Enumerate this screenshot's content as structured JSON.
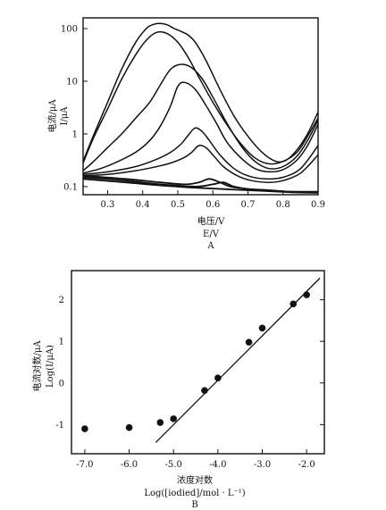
{
  "chart_data": [
    {
      "id": "A",
      "panel_label": "A",
      "type": "line",
      "y_scale": "log",
      "xlim": [
        0.23,
        0.9
      ],
      "ylim": [
        0.07,
        160
      ],
      "xticks": [
        "0.3",
        "0.4",
        "0.5",
        "0.6",
        "0.7",
        "0.8",
        "0.9"
      ],
      "yticks": [
        "0.1",
        "1",
        "10",
        "100"
      ],
      "xlabel_lines": [
        "电压/V",
        "E/V"
      ],
      "ylabel_lines": [
        "电流/μA",
        "I/μA"
      ],
      "series": [
        {
          "x": [
            0.23,
            0.26,
            0.3,
            0.34,
            0.38,
            0.41,
            0.43,
            0.45,
            0.47,
            0.49,
            0.51,
            0.53,
            0.55,
            0.58,
            0.62,
            0.66,
            0.7,
            0.74,
            0.78,
            0.81,
            0.84,
            0.87,
            0.9
          ],
          "y": [
            0.3,
            0.95,
            4.0,
            17,
            55,
            100,
            120,
            125,
            118,
            100,
            88,
            75,
            55,
            25,
            7,
            2.2,
            0.9,
            0.45,
            0.3,
            0.32,
            0.5,
            1.0,
            2.6
          ]
        },
        {
          "x": [
            0.23,
            0.26,
            0.3,
            0.34,
            0.38,
            0.41,
            0.44,
            0.47,
            0.5,
            0.53,
            0.56,
            0.6,
            0.64,
            0.68,
            0.72,
            0.76,
            0.8,
            0.84,
            0.87,
            0.9
          ],
          "y": [
            0.28,
            0.85,
            3.0,
            11,
            32,
            60,
            85,
            80,
            55,
            28,
            12,
            4.0,
            1.5,
            0.65,
            0.35,
            0.27,
            0.3,
            0.45,
            0.9,
            2.0
          ]
        },
        {
          "x": [
            0.23,
            0.26,
            0.3,
            0.34,
            0.38,
            0.42,
            0.45,
            0.48,
            0.51,
            0.54,
            0.57,
            0.6,
            0.64,
            0.68,
            0.72,
            0.76,
            0.8,
            0.84,
            0.87,
            0.9
          ],
          "y": [
            0.2,
            0.3,
            0.55,
            1.0,
            2.0,
            4.0,
            8.5,
            17,
            21,
            18,
            11,
            5.0,
            1.6,
            0.6,
            0.3,
            0.22,
            0.24,
            0.38,
            0.75,
            1.8
          ]
        },
        {
          "x": [
            0.23,
            0.28,
            0.33,
            0.38,
            0.42,
            0.45,
            0.48,
            0.5,
            0.52,
            0.55,
            0.58,
            0.61,
            0.64,
            0.68,
            0.72,
            0.76,
            0.8,
            0.84,
            0.87,
            0.9
          ],
          "y": [
            0.18,
            0.22,
            0.3,
            0.45,
            0.75,
            1.4,
            3.5,
            8.0,
            9.5,
            7.0,
            3.5,
            1.6,
            0.7,
            0.35,
            0.22,
            0.19,
            0.21,
            0.32,
            0.6,
            1.5
          ]
        },
        {
          "x": [
            0.23,
            0.3,
            0.38,
            0.44,
            0.48,
            0.51,
            0.53,
            0.55,
            0.57,
            0.59,
            0.62,
            0.66,
            0.7,
            0.75,
            0.8,
            0.85,
            0.9
          ],
          "y": [
            0.17,
            0.19,
            0.24,
            0.33,
            0.45,
            0.65,
            0.95,
            1.3,
            1.1,
            0.75,
            0.4,
            0.22,
            0.16,
            0.14,
            0.15,
            0.22,
            0.6
          ]
        },
        {
          "x": [
            0.23,
            0.3,
            0.38,
            0.44,
            0.48,
            0.52,
            0.54,
            0.56,
            0.58,
            0.6,
            0.63,
            0.67,
            0.71,
            0.76,
            0.8,
            0.85,
            0.9
          ],
          "y": [
            0.16,
            0.17,
            0.2,
            0.24,
            0.28,
            0.36,
            0.45,
            0.6,
            0.55,
            0.4,
            0.24,
            0.16,
            0.13,
            0.12,
            0.13,
            0.18,
            0.4
          ]
        },
        {
          "x": [
            0.23,
            0.35,
            0.45,
            0.52,
            0.56,
            0.59,
            0.62,
            0.65,
            0.7,
            0.76,
            0.82,
            0.9
          ],
          "y": [
            0.16,
            0.14,
            0.12,
            0.11,
            0.12,
            0.14,
            0.12,
            0.1,
            0.09,
            0.085,
            0.08,
            0.08
          ]
        },
        {
          "x": [
            0.23,
            0.35,
            0.45,
            0.55,
            0.6,
            0.63,
            0.66,
            0.7,
            0.76,
            0.82,
            0.9
          ],
          "y": [
            0.15,
            0.13,
            0.11,
            0.1,
            0.11,
            0.12,
            0.1,
            0.09,
            0.085,
            0.08,
            0.078
          ]
        },
        {
          "x": [
            0.23,
            0.35,
            0.45,
            0.55,
            0.65,
            0.75,
            0.82,
            0.9
          ],
          "y": [
            0.14,
            0.12,
            0.105,
            0.095,
            0.088,
            0.082,
            0.078,
            0.076
          ]
        }
      ]
    },
    {
      "id": "B",
      "panel_label": "B",
      "type": "scatter",
      "xlim": [
        -7.3,
        -1.6
      ],
      "ylim": [
        -1.7,
        2.7
      ],
      "xticks": [
        "-7.0",
        "-6.0",
        "-5.0",
        "-4.0",
        "-3.0",
        "-2.0"
      ],
      "yticks": [
        "-1",
        "0",
        "1",
        "2"
      ],
      "xlabel_lines": [
        "浓度对数",
        "Log([iodied]/mol · L⁻¹)"
      ],
      "ylabel_lines": [
        "电流对数/μA",
        "Log(I/μA)"
      ],
      "points": {
        "x": [
          -7.0,
          -6.0,
          -5.3,
          -5.0,
          -4.3,
          -4.0,
          -3.3,
          -3.0,
          -2.3,
          -2.0
        ],
        "y": [
          -1.1,
          -1.07,
          -0.95,
          -0.86,
          -0.18,
          0.12,
          0.98,
          1.32,
          1.9,
          2.12
        ]
      },
      "fit_line": {
        "x": [
          -5.4,
          -1.7
        ],
        "y": [
          -1.43,
          2.52
        ]
      }
    }
  ]
}
